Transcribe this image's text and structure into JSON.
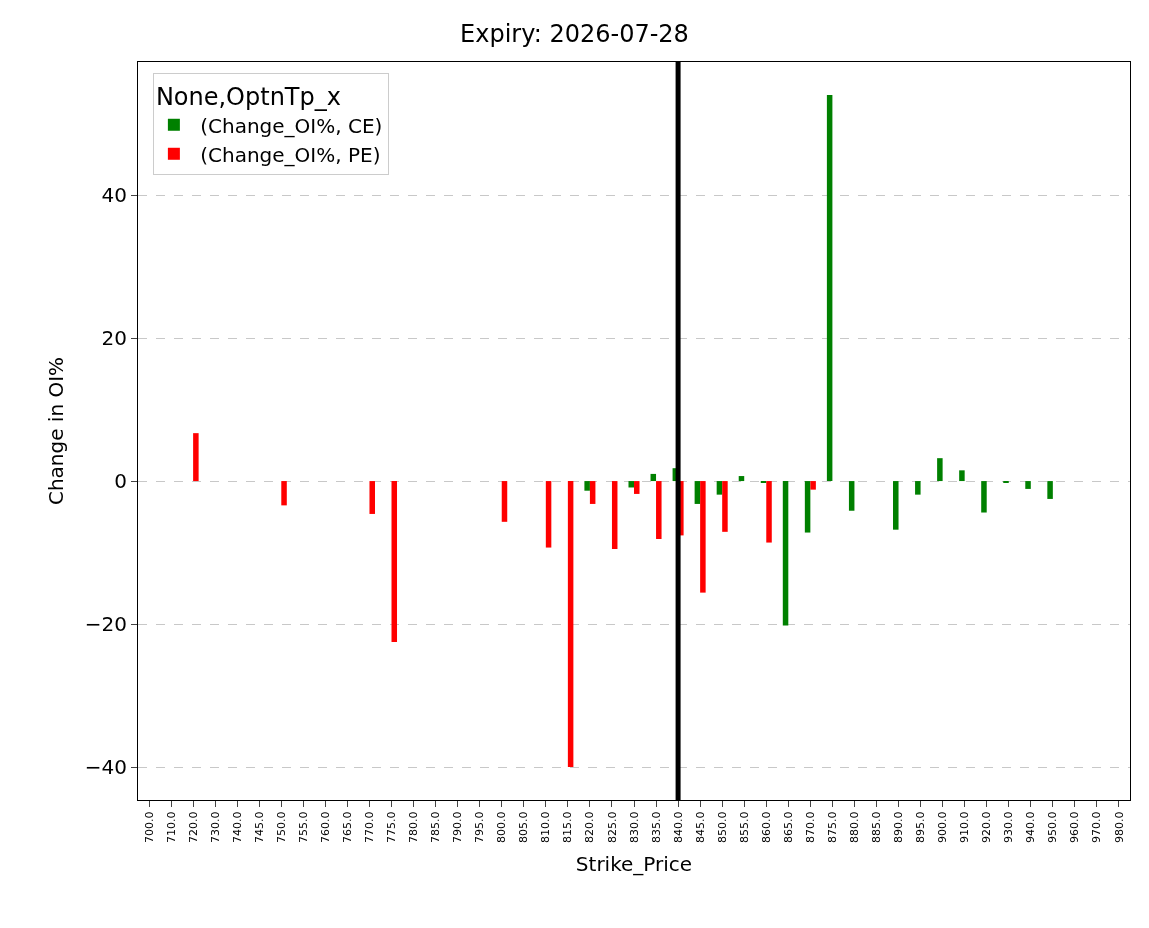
{
  "chart_data": {
    "type": "bar",
    "title": "Expiry: 2026-07-28",
    "xlabel": "Strike_Price",
    "ylabel": "Change in OI%",
    "legend_title": "None,OptnTp_x",
    "categories": [
      "700.0",
      "710.0",
      "720.0",
      "730.0",
      "740.0",
      "745.0",
      "750.0",
      "755.0",
      "760.0",
      "765.0",
      "770.0",
      "775.0",
      "780.0",
      "785.0",
      "790.0",
      "795.0",
      "800.0",
      "805.0",
      "810.0",
      "815.0",
      "820.0",
      "825.0",
      "830.0",
      "835.0",
      "840.0",
      "845.0",
      "850.0",
      "855.0",
      "860.0",
      "865.0",
      "870.0",
      "875.0",
      "880.0",
      "885.0",
      "890.0",
      "895.0",
      "900.0",
      "910.0",
      "920.0",
      "930.0",
      "940.0",
      "950.0",
      "960.0",
      "970.0",
      "980.0"
    ],
    "series": [
      {
        "name": " (Change_OI%, CE)",
        "color": "#008000",
        "values": [
          null,
          null,
          null,
          null,
          null,
          null,
          null,
          null,
          null,
          null,
          null,
          null,
          null,
          null,
          null,
          null,
          null,
          null,
          null,
          null,
          -1.35,
          null,
          -0.9,
          1.0,
          1.8,
          -3.2,
          -1.9,
          0.7,
          -0.2,
          -20.2,
          -7.2,
          54.0,
          -4.15,
          null,
          -6.8,
          -1.9,
          3.2,
          1.5,
          -4.4,
          -0.2,
          -1.1,
          -2.5,
          null,
          null,
          null
        ]
      },
      {
        "name": " (Change_OI%, PE)",
        "color": "#ff0000",
        "values": [
          null,
          null,
          6.7,
          null,
          null,
          null,
          -3.4,
          null,
          null,
          null,
          -4.6,
          -22.5,
          null,
          null,
          null,
          null,
          -5.7,
          null,
          -9.3,
          -40.0,
          -3.2,
          -9.5,
          -1.8,
          -8.1,
          -7.6,
          -15.6,
          -7.1,
          null,
          -8.6,
          null,
          -1.2,
          null,
          null,
          null,
          null,
          null,
          null,
          null,
          null,
          null,
          null,
          null,
          null,
          null,
          null
        ]
      }
    ],
    "ylim": [
      -44.6,
      58.6
    ],
    "yticks": [
      -40,
      -20,
      0,
      20,
      40
    ],
    "grid": "y",
    "legend": "top left",
    "ref_lines": [
      {
        "axis": "x",
        "value": "840.0",
        "color": "#000000"
      }
    ]
  }
}
